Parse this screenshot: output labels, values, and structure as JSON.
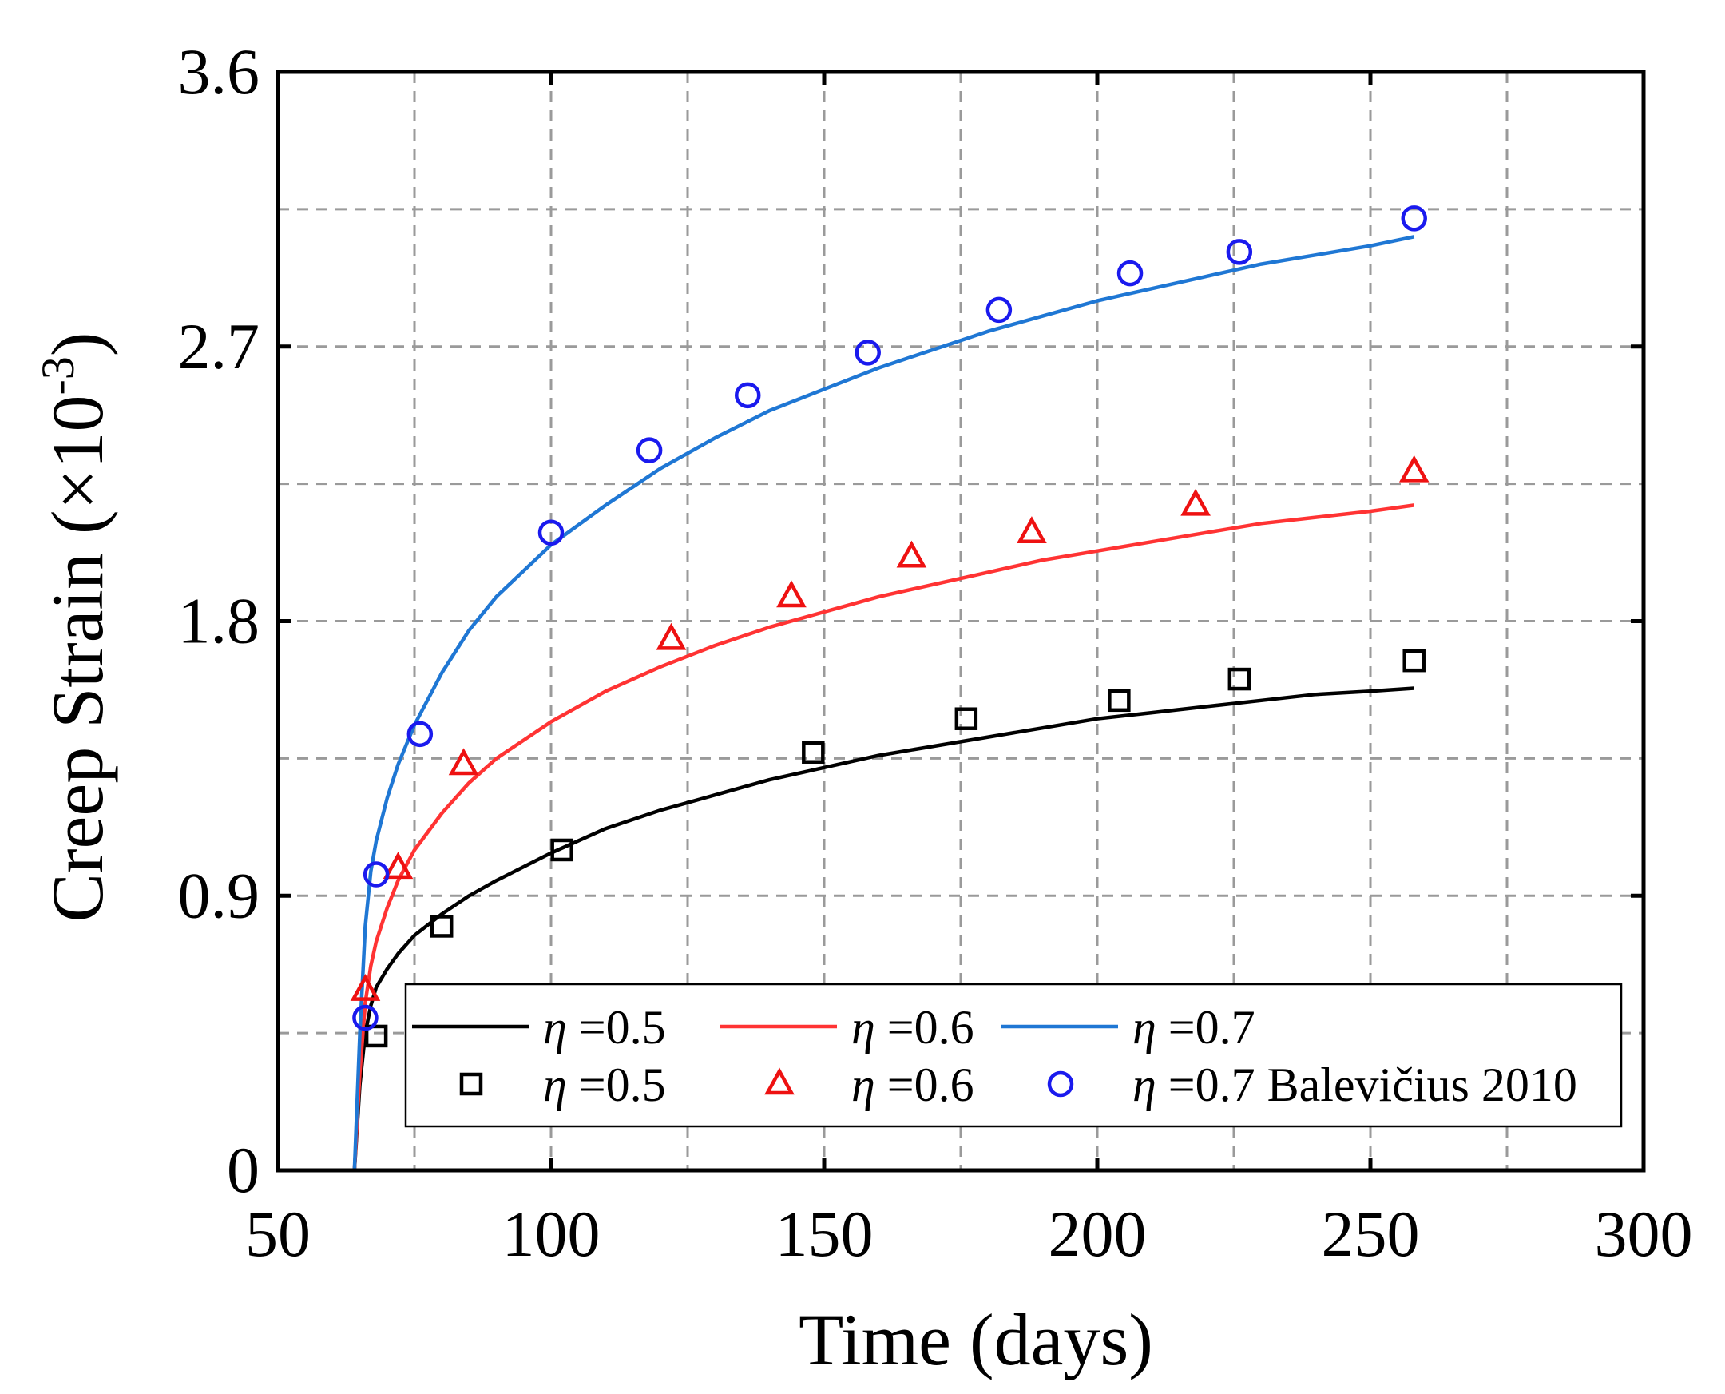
{
  "chart_data": {
    "type": "line",
    "xlabel": "Time (days)",
    "ylabel_main": "Creep Strain (×10",
    "ylabel_sup": "-3",
    "ylabel_end": ")",
    "xlim": [
      50,
      300
    ],
    "ylim": [
      0,
      3.6
    ],
    "xticks": [
      50,
      100,
      150,
      200,
      250,
      300
    ],
    "xtick_labels": [
      "50",
      "100",
      "150",
      "200",
      "250",
      "300"
    ],
    "yticks": [
      0,
      0.9,
      1.8,
      2.7,
      3.6
    ],
    "ytick_labels": [
      "0",
      "0.9",
      "1.8",
      "2.7",
      "3.6"
    ],
    "grid": true,
    "legend_position": "bottom-right",
    "series": [
      {
        "name": "η =0.5",
        "greek": "η",
        "suffix": " =0.5",
        "kind": "line",
        "color": "#000000",
        "x": [
          64,
          65,
          66,
          67,
          68,
          70,
          72,
          75,
          80,
          85,
          90,
          100,
          110,
          120,
          130,
          140,
          150,
          160,
          170,
          180,
          190,
          200,
          210,
          220,
          230,
          240,
          250,
          258
        ],
        "y": [
          0,
          0.28,
          0.45,
          0.54,
          0.6,
          0.66,
          0.71,
          0.77,
          0.84,
          0.9,
          0.95,
          1.04,
          1.12,
          1.18,
          1.23,
          1.28,
          1.32,
          1.36,
          1.39,
          1.42,
          1.45,
          1.48,
          1.5,
          1.52,
          1.54,
          1.56,
          1.57,
          1.58
        ]
      },
      {
        "name": "η =0.6",
        "greek": "η",
        "suffix": " =0.6",
        "kind": "line",
        "color": "#ff3333",
        "x": [
          64,
          65,
          66,
          67,
          68,
          70,
          72,
          75,
          80,
          85,
          90,
          100,
          110,
          120,
          130,
          140,
          150,
          160,
          170,
          180,
          190,
          200,
          210,
          220,
          230,
          240,
          250,
          258
        ],
        "y": [
          0,
          0.32,
          0.55,
          0.67,
          0.75,
          0.86,
          0.95,
          1.05,
          1.17,
          1.27,
          1.35,
          1.47,
          1.57,
          1.65,
          1.72,
          1.78,
          1.83,
          1.88,
          1.92,
          1.96,
          2.0,
          2.03,
          2.06,
          2.09,
          2.12,
          2.14,
          2.16,
          2.18
        ]
      },
      {
        "name": "η =0.7",
        "greek": "η",
        "suffix": " =0.7",
        "kind": "line",
        "color": "#1f77d4",
        "x": [
          64,
          65,
          66,
          67,
          68,
          70,
          72,
          75,
          80,
          85,
          90,
          100,
          110,
          120,
          130,
          140,
          150,
          160,
          170,
          180,
          190,
          200,
          210,
          220,
          230,
          240,
          250,
          258
        ],
        "y": [
          0,
          0.45,
          0.8,
          0.98,
          1.08,
          1.22,
          1.33,
          1.46,
          1.63,
          1.77,
          1.88,
          2.05,
          2.18,
          2.3,
          2.4,
          2.49,
          2.56,
          2.63,
          2.69,
          2.75,
          2.8,
          2.85,
          2.89,
          2.93,
          2.97,
          3.0,
          3.03,
          3.06
        ]
      },
      {
        "name": "η =0.5",
        "greek": "η",
        "suffix": " =0.5",
        "kind": "marker",
        "marker": "square",
        "color": "#000000",
        "x": [
          68,
          80,
          102,
          148,
          176,
          204,
          226,
          258
        ],
        "y": [
          0.44,
          0.8,
          1.05,
          1.37,
          1.48,
          1.54,
          1.61,
          1.67
        ]
      },
      {
        "name": "η =0.6",
        "greek": "η",
        "suffix": " =0.6",
        "kind": "marker",
        "marker": "triangle",
        "color": "#ee1111",
        "x": [
          66,
          72,
          84,
          122,
          144,
          166,
          188,
          218,
          258
        ],
        "y": [
          0.59,
          0.99,
          1.33,
          1.74,
          1.88,
          2.01,
          2.09,
          2.18,
          2.29
        ]
      },
      {
        "name": "η =0.7 Balevičius 2010",
        "greek": "η",
        "suffix": " =0.7 Balevičius 2010",
        "kind": "marker",
        "marker": "circle",
        "color": "#1a1aee",
        "x": [
          66,
          68,
          76,
          100,
          118,
          136,
          158,
          182,
          206,
          226,
          258
        ],
        "y": [
          0.5,
          0.97,
          1.43,
          2.09,
          2.36,
          2.54,
          2.68,
          2.82,
          2.94,
          3.01,
          3.12
        ]
      }
    ]
  }
}
